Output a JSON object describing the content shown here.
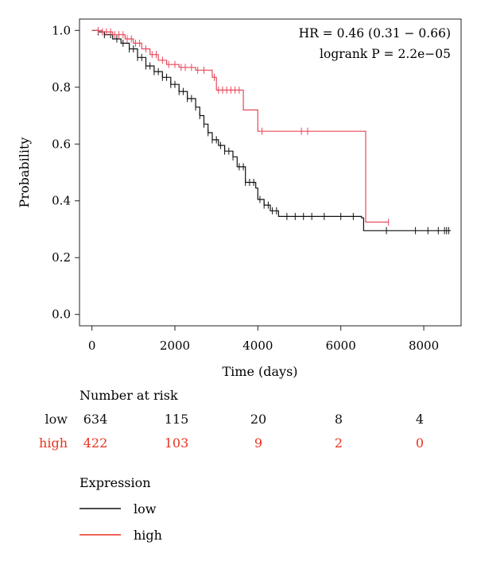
{
  "chart_data": {
    "type": "line",
    "subtype": "kaplan-meier",
    "xlabel": "Time (days)",
    "ylabel": "Probability",
    "xlim": [
      -300,
      8900
    ],
    "ylim": [
      -0.04,
      1.04
    ],
    "xticks": [
      0,
      2000,
      4000,
      6000,
      8000
    ],
    "yticks": [
      0.0,
      0.2,
      0.4,
      0.6,
      0.8,
      1.0
    ],
    "annotations": [
      "HR = 0.46 (0.31 − 0.66)",
      "logrank P = 2.2e−05"
    ],
    "series": [
      {
        "name": "low",
        "color": "#111111",
        "steps": [
          [
            0,
            1.0
          ],
          [
            150,
            0.995
          ],
          [
            300,
            0.985
          ],
          [
            500,
            0.97
          ],
          [
            700,
            0.955
          ],
          [
            900,
            0.935
          ],
          [
            1100,
            0.905
          ],
          [
            1300,
            0.875
          ],
          [
            1500,
            0.855
          ],
          [
            1700,
            0.835
          ],
          [
            1900,
            0.81
          ],
          [
            2100,
            0.785
          ],
          [
            2300,
            0.76
          ],
          [
            2500,
            0.73
          ],
          [
            2600,
            0.7
          ],
          [
            2700,
            0.67
          ],
          [
            2800,
            0.64
          ],
          [
            2900,
            0.615
          ],
          [
            3050,
            0.595
          ],
          [
            3200,
            0.575
          ],
          [
            3400,
            0.555
          ],
          [
            3500,
            0.52
          ],
          [
            3700,
            0.465
          ],
          [
            3950,
            0.445
          ],
          [
            4000,
            0.405
          ],
          [
            4150,
            0.385
          ],
          [
            4300,
            0.365
          ],
          [
            4500,
            0.345
          ],
          [
            6500,
            0.34
          ],
          [
            6550,
            0.295
          ],
          [
            8650,
            0.295
          ]
        ],
        "censor": [
          150,
          300,
          450,
          600,
          750,
          900,
          1000,
          1100,
          1200,
          1300,
          1400,
          1500,
          1600,
          1700,
          1800,
          1900,
          2000,
          2100,
          2200,
          2300,
          2400,
          2500,
          2600,
          2700,
          2800,
          2900,
          3000,
          3100,
          3200,
          3300,
          3400,
          3550,
          3650,
          3700,
          3800,
          3900,
          4050,
          4150,
          4250,
          4350,
          4450,
          4700,
          4900,
          5100,
          5300,
          5600,
          6000,
          6300,
          7100,
          7800,
          8100,
          8350,
          8500,
          8550,
          8600
        ]
      },
      {
        "name": "high",
        "color": "#e8485a",
        "steps": [
          [
            0,
            1.0
          ],
          [
            250,
            0.995
          ],
          [
            500,
            0.985
          ],
          [
            800,
            0.97
          ],
          [
            1000,
            0.955
          ],
          [
            1200,
            0.935
          ],
          [
            1400,
            0.915
          ],
          [
            1600,
            0.895
          ],
          [
            1800,
            0.88
          ],
          [
            2100,
            0.87
          ],
          [
            2500,
            0.86
          ],
          [
            2900,
            0.835
          ],
          [
            3000,
            0.79
          ],
          [
            3600,
            0.79
          ],
          [
            3650,
            0.72
          ],
          [
            3950,
            0.72
          ],
          [
            4000,
            0.645
          ],
          [
            6550,
            0.645
          ],
          [
            6600,
            0.325
          ],
          [
            7150,
            0.325
          ]
        ],
        "censor": [
          150,
          250,
          350,
          450,
          550,
          650,
          750,
          850,
          950,
          1050,
          1150,
          1300,
          1450,
          1550,
          1700,
          1850,
          2000,
          2150,
          2250,
          2400,
          2550,
          2700,
          2950,
          3050,
          3150,
          3250,
          3350,
          3450,
          3550,
          4100,
          5050,
          5200,
          7150
        ]
      }
    ]
  },
  "risk_table": {
    "title": "Number at risk",
    "rows": [
      {
        "label": "low",
        "color": "#111111",
        "values": [
          "634",
          "115",
          "20",
          "8",
          "4"
        ]
      },
      {
        "label": "high",
        "color": "#e8321e",
        "values": [
          "422",
          "103",
          "9",
          "2",
          "0"
        ]
      }
    ]
  },
  "legend": {
    "title": "Expression",
    "items": [
      {
        "label": "low",
        "color": "#111111"
      },
      {
        "label": "high",
        "color": "#e8321e"
      }
    ]
  }
}
